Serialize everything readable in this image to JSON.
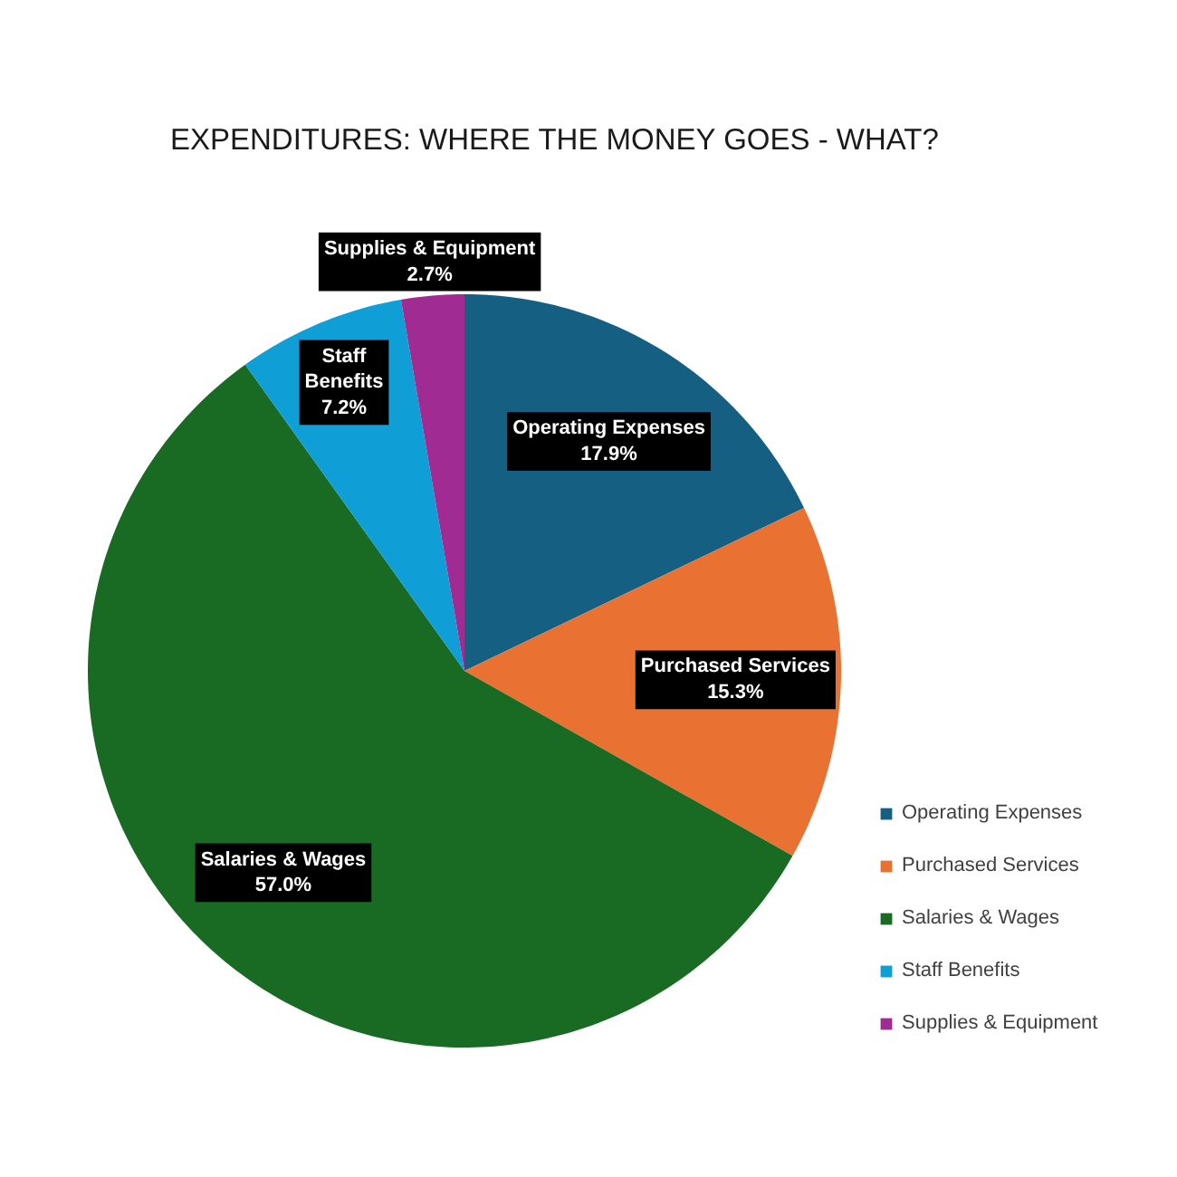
{
  "chart_data": {
    "type": "pie",
    "title": "EXPENDITURES: WHERE THE MONEY GOES - WHAT?",
    "categories": [
      "Operating Expenses",
      "Purchased Services",
      "Salaries & Wages",
      "Staff Benefits",
      "Supplies & Equipment"
    ],
    "values": [
      17.9,
      15.3,
      57.0,
      7.2,
      2.7
    ],
    "value_labels": [
      "17.9%",
      "15.3%",
      "57.0%",
      "7.2%",
      "2.7%"
    ],
    "colors": [
      "#156082",
      "#e97132",
      "#196b24",
      "#0f9ed5",
      "#a02b93"
    ],
    "legend": "bottom right"
  }
}
